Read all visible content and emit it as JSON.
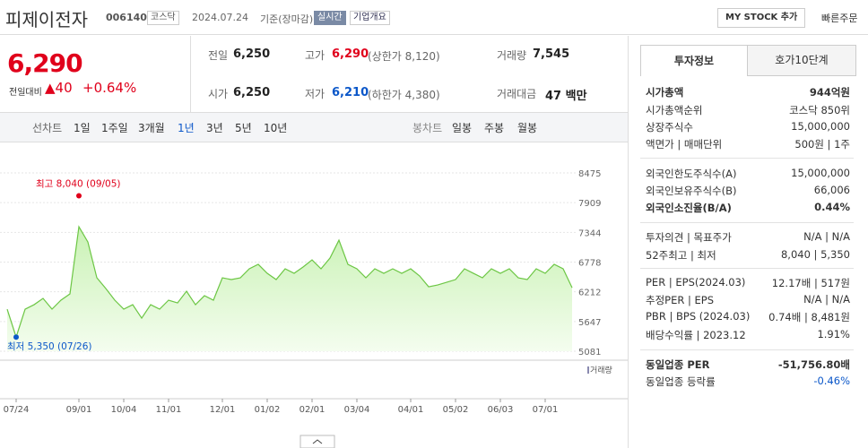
{
  "header": {
    "name": "피제이전자",
    "code": "006140",
    "market": "코스닥",
    "date": "2024.07.24",
    "basis": "기준(장마감)",
    "realtime": "실시간",
    "company_info": "기업개요",
    "my_stock": "MY STOCK 추가",
    "quick_order": "빠른주문"
  },
  "quote": {
    "price": "6,290",
    "change_label": "전일대비",
    "change": "40",
    "change_pct": "+0.64%"
  },
  "stats": [
    {
      "label": "전일",
      "value": "6,250"
    },
    {
      "label": "고가",
      "value": "6,290",
      "sub": "(상한가 8,120)"
    },
    {
      "label": "거래량",
      "value": "7,545"
    },
    {
      "label": "시가",
      "value": "6,250"
    },
    {
      "label": "저가",
      "value": "6,210",
      "sub": "(하한가 4,380)"
    },
    {
      "label": "거래대금",
      "value": "47 백만"
    }
  ],
  "periods": {
    "line_label": "선차트",
    "items": [
      "1일",
      "1주일",
      "3개월",
      "1년",
      "3년",
      "5년",
      "10년"
    ],
    "candle_label": "봉차트",
    "candles": [
      "일봉",
      "주봉",
      "월봉"
    ]
  },
  "chart_data": {
    "type": "line",
    "color": "#6cc644",
    "categories": [
      null,
      "07/24",
      null,
      null,
      null,
      null,
      null,
      null,
      "09/01",
      null,
      null,
      null,
      null,
      "10/04",
      null,
      null,
      null,
      null,
      "11/01",
      null,
      null,
      null,
      null,
      null,
      "12/01",
      null,
      null,
      null,
      null,
      "01/02",
      null,
      null,
      null,
      null,
      "02/01",
      null,
      null,
      null,
      null,
      "03/04",
      null,
      null,
      null,
      null,
      null,
      "04/01",
      null,
      null,
      null,
      null,
      "05/02",
      null,
      null,
      null,
      null,
      "06/03",
      null,
      null,
      null,
      null,
      "07/01",
      null,
      null,
      null
    ],
    "values": [
      5882,
      5350,
      5882,
      5967,
      6087,
      5882,
      6053,
      6172,
      7451,
      7161,
      6479,
      6274,
      6053,
      5882,
      5967,
      5711,
      5967,
      5882,
      6053,
      6001,
      6223,
      5967,
      6138,
      6053,
      6479,
      6445,
      6479,
      6650,
      6735,
      6564,
      6445,
      6650,
      6564,
      6684,
      6820,
      6650,
      6854,
      7195,
      6735,
      6650,
      6479,
      6650,
      6564,
      6650,
      6564,
      6650,
      6513,
      6308,
      6342,
      6394,
      6445,
      6650,
      6564,
      6479,
      6650,
      6564,
      6650,
      6479,
      6445,
      6650,
      6564,
      6735,
      6650,
      6290
    ],
    "ylim": [
      5081,
      8475
    ],
    "yticks": [
      5081,
      5647,
      6212,
      6778,
      7344,
      7909,
      8475
    ],
    "grid": true,
    "annotations": [
      {
        "label": "최고 8,040 (09/05)",
        "value": 8040
      },
      {
        "label": "최저 5,350 (07/26)",
        "value": 5350
      }
    ],
    "volume_label": "거래량"
  },
  "invest": {
    "tabs": [
      "투자정보",
      "호가10단계"
    ],
    "rows": [
      {
        "label": "시가총액",
        "value": "944억원"
      },
      {
        "label": "시가총액순위",
        "value": "코스닥 850위"
      },
      {
        "label": "상장주식수",
        "value": "15,000,000"
      },
      {
        "label": "액면가 | 매매단위",
        "value": "500원 | 1주"
      },
      {
        "label": "외국인한도주식수(A)",
        "value": "15,000,000"
      },
      {
        "label": "외국인보유주식수(B)",
        "value": "66,006"
      },
      {
        "label": "외국인소진율(B/A)",
        "value": "0.44%"
      },
      {
        "label": "투자의견 | 목표주가",
        "value": "N/A | N/A"
      },
      {
        "label": "52주최고 | 최저",
        "value": "8,040 | 5,350"
      },
      {
        "label": "PER | EPS(2024.03)",
        "value": "12.17배 | 517원"
      },
      {
        "label": "추정PER | EPS",
        "value": "N/A | N/A"
      },
      {
        "label": "PBR | BPS (2024.03)",
        "value": "0.74배 | 8,481원"
      },
      {
        "label": "배당수익률 | 2023.12",
        "value": "1.91%"
      },
      {
        "label": "동일업종 PER",
        "value": "-51,756.80배"
      },
      {
        "label": "동일업종 등락률",
        "value": "-0.46%"
      }
    ]
  }
}
